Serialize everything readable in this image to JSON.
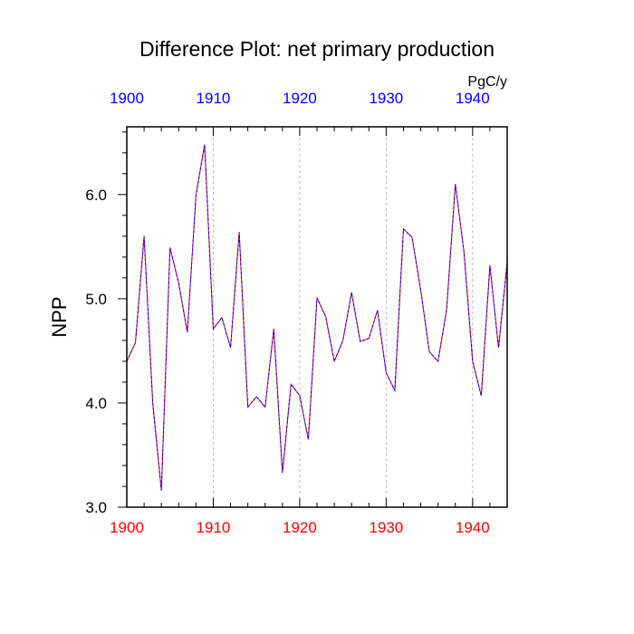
{
  "chart_data": {
    "type": "line",
    "title": "Difference Plot: net primary production",
    "units": "PgC/y",
    "ylabel": "NPP",
    "xlim": [
      1900,
      1944
    ],
    "ylim": [
      3.0,
      6.65
    ],
    "xticks": [
      1900,
      1910,
      1920,
      1930,
      1940
    ],
    "bottom_tick_labels": [
      "1900",
      "1910",
      "1920",
      "1930",
      "1940"
    ],
    "top_tick_labels": [
      "1900",
      "1910",
      "1920",
      "1930",
      "1940"
    ],
    "yticks": [
      3.0,
      4.0,
      5.0,
      6.0
    ],
    "ytick_labels": [
      "3.0",
      "4.0",
      "5.0",
      "6.0"
    ],
    "grid": "vertical dashed at major x ticks",
    "colors": {
      "bottom_axis": "#ff0000",
      "top_axis": "#0000ff",
      "line_a": "#ff0000",
      "line_b": "#0000ff"
    },
    "series": [
      {
        "x": [
          1900,
          1901,
          1902,
          1903,
          1904,
          1905,
          1906,
          1907,
          1908,
          1909,
          1910,
          1911,
          1912,
          1913,
          1914,
          1915,
          1916,
          1917,
          1918,
          1919,
          1920,
          1921,
          1922,
          1923,
          1924,
          1925,
          1926,
          1927,
          1928,
          1929,
          1930,
          1931,
          1932,
          1933,
          1934,
          1935,
          1936,
          1937,
          1938,
          1939,
          1940,
          1941,
          1942,
          1943,
          1944
        ],
        "values": [
          4.4,
          4.58,
          5.6,
          4.0,
          3.16,
          5.49,
          5.15,
          4.68,
          5.99,
          6.48,
          4.71,
          4.82,
          4.53,
          5.64,
          3.96,
          4.06,
          3.96,
          4.71,
          3.33,
          4.18,
          4.07,
          3.65,
          5.01,
          4.83,
          4.4,
          4.6,
          5.06,
          4.59,
          4.62,
          4.89,
          4.29,
          4.12,
          5.67,
          5.59,
          5.08,
          4.49,
          4.4,
          4.9,
          6.1,
          5.45,
          4.4,
          4.07,
          5.32,
          4.53,
          5.35
        ]
      }
    ]
  }
}
